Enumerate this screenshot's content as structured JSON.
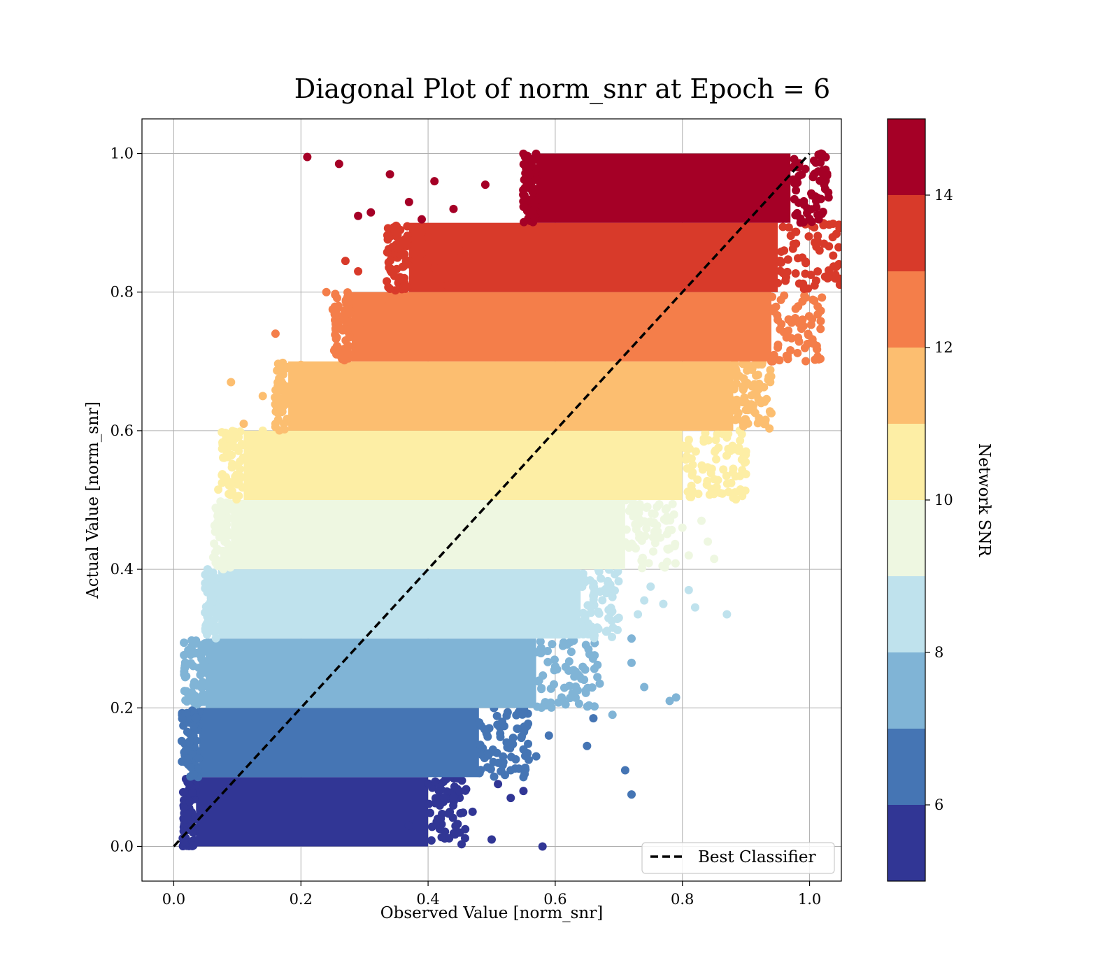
{
  "chart_data": {
    "type": "scatter",
    "title": "Diagonal Plot of norm_snr at Epoch = 6",
    "xlabel": "Observed Value [norm_snr]",
    "ylabel": "Actual Value [norm_snr]",
    "xlim": [
      -0.05,
      1.05
    ],
    "ylim": [
      -0.05,
      1.05
    ],
    "xticks": [
      "0.0",
      "0.2",
      "0.4",
      "0.6",
      "0.8",
      "1.0"
    ],
    "xtick_values": [
      0.0,
      0.2,
      0.4,
      0.6,
      0.8,
      1.0
    ],
    "yticks": [
      "0.0",
      "0.2",
      "0.4",
      "0.6",
      "0.8",
      "1.0"
    ],
    "ytick_values": [
      0.0,
      0.2,
      0.4,
      0.6,
      0.8,
      1.0
    ],
    "grid": true,
    "reference_line": {
      "name": "Best Classifier",
      "x": [
        0.0,
        1.0
      ],
      "y": [
        0.0,
        1.0
      ],
      "style": "dashed",
      "color": "#000000"
    },
    "legend": {
      "position": "lower-right",
      "entries": [
        "Best Classifier"
      ]
    },
    "colorbar": {
      "label": "Network SNR",
      "range": [
        5,
        15
      ],
      "ticks": [
        "6",
        "8",
        "10",
        "12",
        "14"
      ],
      "tick_values": [
        6,
        8,
        10,
        12,
        14
      ],
      "colors": [
        "#313695",
        "#4575b4",
        "#80b4d6",
        "#bfe2ed",
        "#eef7e1",
        "#fdeea5",
        "#fcbe70",
        "#f47e4a",
        "#d83a2a",
        "#a50026"
      ]
    },
    "bands": [
      {
        "y_range": [
          0.0,
          0.1
        ],
        "snr_center": 5.5,
        "color": "#313695",
        "core_x": [
          0.035,
          0.4
        ],
        "outliers": [
          [
            0.58,
            0.0
          ],
          [
            0.53,
            0.07
          ],
          [
            0.5,
            0.01
          ],
          [
            0.45,
            0.02
          ],
          [
            0.42,
            0.04
          ],
          [
            0.37,
            0.03
          ],
          [
            0.47,
            0.05
          ],
          [
            0.44,
            0.07
          ],
          [
            0.51,
            0.09
          ],
          [
            0.55,
            0.08
          ]
        ]
      },
      {
        "y_range": [
          0.1,
          0.2
        ],
        "snr_center": 6.5,
        "color": "#4575b4",
        "core_x": [
          0.04,
          0.48
        ],
        "outliers": [
          [
            0.72,
            0.075
          ],
          [
            0.71,
            0.11
          ],
          [
            0.65,
            0.145
          ],
          [
            0.66,
            0.185
          ],
          [
            0.59,
            0.16
          ],
          [
            0.57,
            0.13
          ],
          [
            0.55,
            0.14
          ],
          [
            0.54,
            0.17
          ],
          [
            0.53,
            0.11
          ],
          [
            0.55,
            0.1
          ]
        ]
      },
      {
        "y_range": [
          0.2,
          0.3
        ],
        "snr_center": 7.5,
        "color": "#80b4d6",
        "core_x": [
          0.05,
          0.57
        ],
        "outliers": [
          [
            0.79,
            0.215
          ],
          [
            0.78,
            0.21
          ],
          [
            0.74,
            0.23
          ],
          [
            0.72,
            0.265
          ],
          [
            0.72,
            0.3
          ],
          [
            0.69,
            0.19
          ],
          [
            0.67,
            0.235
          ],
          [
            0.63,
            0.245
          ],
          [
            0.61,
            0.215
          ],
          [
            0.6,
            0.26
          ]
        ]
      },
      {
        "y_range": [
          0.3,
          0.4
        ],
        "snr_center": 8.5,
        "color": "#bfe2ed",
        "core_x": [
          0.07,
          0.64
        ],
        "outliers": [
          [
            0.87,
            0.335
          ],
          [
            0.82,
            0.345
          ],
          [
            0.81,
            0.37
          ],
          [
            0.77,
            0.35
          ],
          [
            0.74,
            0.355
          ],
          [
            0.73,
            0.335
          ],
          [
            0.7,
            0.33
          ],
          [
            0.75,
            0.375
          ],
          [
            0.69,
            0.36
          ],
          [
            0.68,
            0.31
          ]
        ]
      },
      {
        "y_range": [
          0.4,
          0.5
        ],
        "snr_center": 9.5,
        "color": "#eef7e1",
        "core_x": [
          0.09,
          0.71
        ],
        "outliers": [
          [
            0.85,
            0.415
          ],
          [
            0.84,
            0.44
          ],
          [
            0.81,
            0.42
          ],
          [
            0.8,
            0.46
          ],
          [
            0.83,
            0.47
          ],
          [
            0.78,
            0.43
          ],
          [
            0.07,
            0.47
          ],
          [
            0.08,
            0.44
          ],
          [
            0.09,
            0.41
          ],
          [
            0.76,
            0.49
          ]
        ]
      },
      {
        "y_range": [
          0.5,
          0.6
        ],
        "snr_center": 10.5,
        "color": "#fdeea5",
        "core_x": [
          0.11,
          0.8
        ],
        "outliers": [
          [
            0.07,
            0.515
          ],
          [
            0.1,
            0.53
          ],
          [
            0.12,
            0.58
          ],
          [
            0.14,
            0.6
          ],
          [
            0.9,
            0.57
          ],
          [
            0.88,
            0.545
          ],
          [
            0.86,
            0.51
          ],
          [
            0.89,
            0.6
          ],
          [
            0.85,
            0.53
          ],
          [
            0.87,
            0.59
          ]
        ]
      },
      {
        "y_range": [
          0.6,
          0.7
        ],
        "snr_center": 11.5,
        "color": "#fcbe70",
        "core_x": [
          0.18,
          0.88
        ],
        "outliers": [
          [
            0.09,
            0.67
          ],
          [
            0.11,
            0.61
          ],
          [
            0.14,
            0.65
          ],
          [
            0.16,
            0.61
          ],
          [
            0.17,
            0.63
          ],
          [
            0.2,
            0.695
          ],
          [
            0.92,
            0.66
          ],
          [
            0.91,
            0.69
          ],
          [
            0.9,
            0.63
          ],
          [
            0.93,
            0.61
          ]
        ]
      },
      {
        "y_range": [
          0.7,
          0.8
        ],
        "snr_center": 12.5,
        "color": "#f47e4a",
        "core_x": [
          0.28,
          0.94
        ],
        "outliers": [
          [
            0.16,
            0.74
          ],
          [
            0.24,
            0.8
          ],
          [
            0.25,
            0.775
          ],
          [
            0.28,
            0.755
          ],
          [
            0.3,
            0.745
          ],
          [
            0.33,
            0.79
          ],
          [
            0.95,
            0.72
          ],
          [
            0.96,
            0.795
          ],
          [
            0.94,
            0.7
          ],
          [
            0.95,
            0.76
          ]
        ]
      },
      {
        "y_range": [
          0.8,
          0.9
        ],
        "snr_center": 13.5,
        "color": "#d83a2a",
        "core_x": [
          0.37,
          0.95
        ],
        "outliers": [
          [
            0.27,
            0.845
          ],
          [
            0.29,
            0.83
          ],
          [
            0.34,
            0.88
          ],
          [
            0.35,
            0.885
          ],
          [
            0.39,
            0.855
          ],
          [
            0.4,
            0.88
          ],
          [
            0.41,
            0.835
          ],
          [
            0.43,
            0.81
          ],
          [
            0.45,
            0.86
          ],
          [
            0.96,
            0.86
          ]
        ]
      },
      {
        "y_range": [
          0.9,
          1.0
        ],
        "snr_center": 14.5,
        "color": "#a50026",
        "core_x": [
          0.57,
          0.97
        ],
        "outliers": [
          [
            0.21,
            0.995
          ],
          [
            0.26,
            0.985
          ],
          [
            0.29,
            0.91
          ],
          [
            0.31,
            0.915
          ],
          [
            0.34,
            0.97
          ],
          [
            0.37,
            0.93
          ],
          [
            0.39,
            0.905
          ],
          [
            0.41,
            0.96
          ],
          [
            0.44,
            0.92
          ],
          [
            0.49,
            0.955
          ]
        ]
      }
    ]
  }
}
